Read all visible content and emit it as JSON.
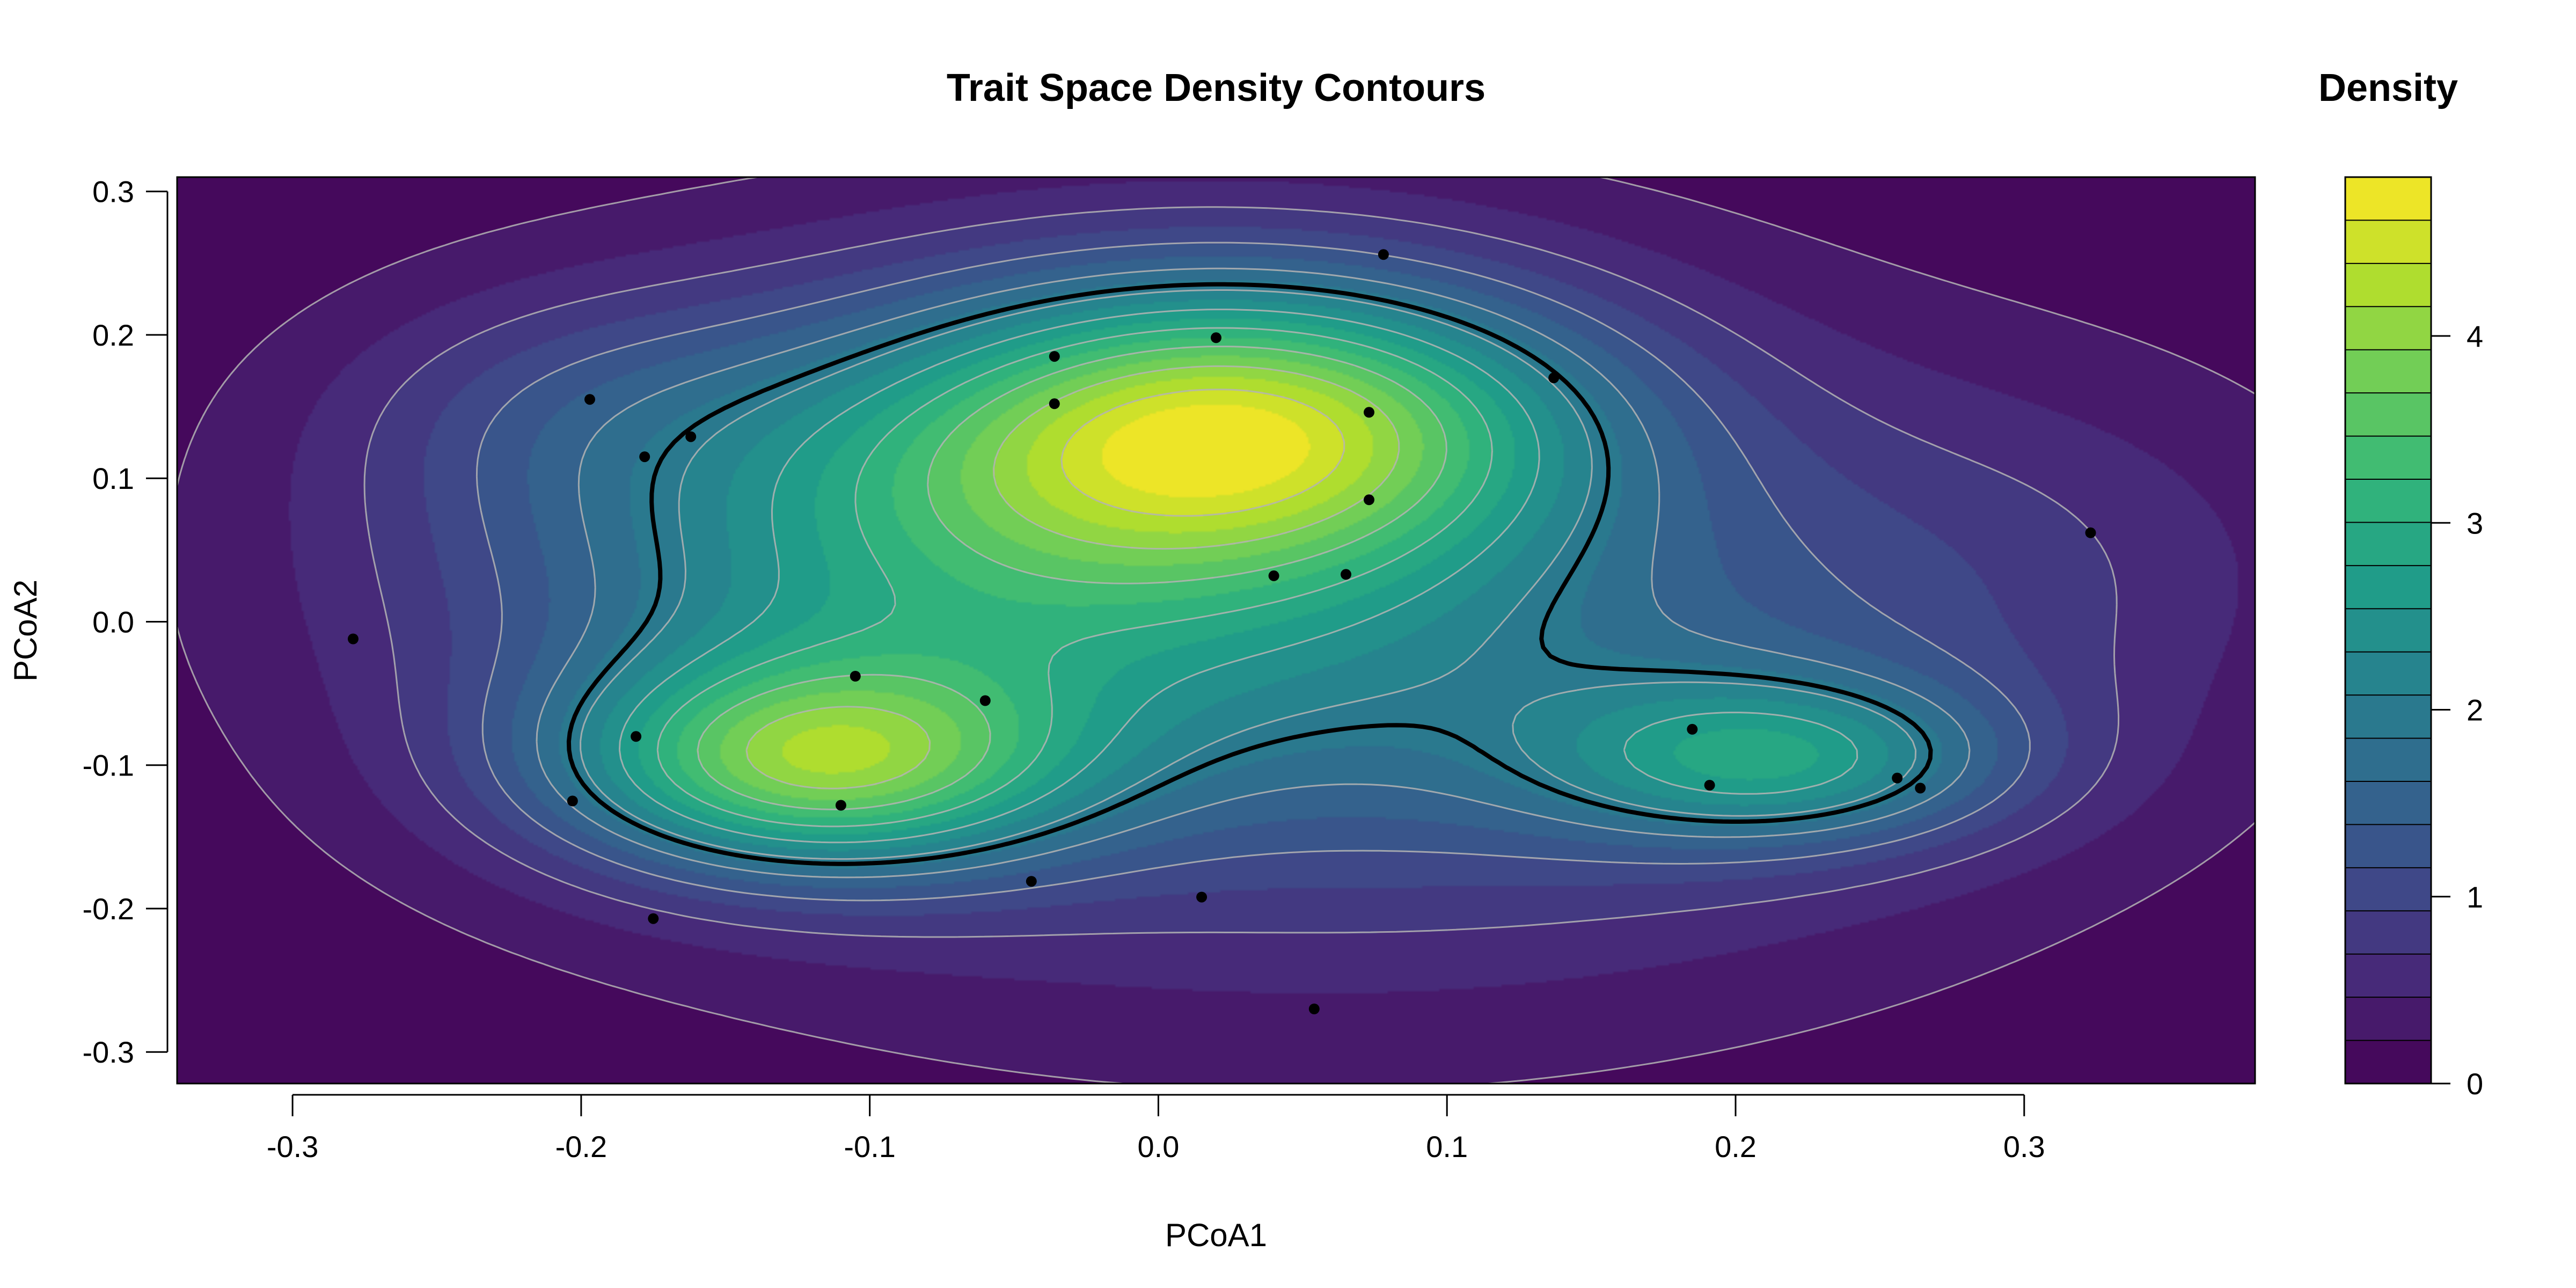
{
  "chart_data": {
    "type": "heatmap",
    "subtype": "filled-density-contour-with-scatter",
    "title": "Trait Space Density Contours",
    "xlabel": "PCoA1",
    "ylabel": "PCoA2",
    "xlim": [
      -0.34,
      0.38
    ],
    "ylim": [
      -0.322,
      0.31
    ],
    "x_ticks": [
      -0.3,
      -0.2,
      -0.1,
      0.0,
      0.1,
      0.2,
      0.3
    ],
    "x_tick_labels": [
      "-0.3",
      "-0.2",
      "-0.1",
      "0.0",
      "0.1",
      "0.2",
      "0.3"
    ],
    "y_ticks": [
      -0.3,
      -0.2,
      -0.1,
      0.0,
      0.1,
      0.2,
      0.3
    ],
    "y_tick_labels": [
      "-0.3",
      "-0.2",
      "-0.1",
      "0.0",
      "0.1",
      "0.2",
      "0.3"
    ],
    "grid": false,
    "colorscale": "viridis",
    "colorscale_stops": [
      "#440154",
      "#482878",
      "#3E4A89",
      "#31688E",
      "#26828E",
      "#1F9E89",
      "#35B779",
      "#6DCD59",
      "#B4DE2C",
      "#FDE725"
    ],
    "legend": {
      "title": "Density",
      "placement": "right",
      "range": [
        0,
        4.85
      ],
      "ticks": [
        0,
        1,
        2,
        3,
        4
      ],
      "tick_labels": [
        "0",
        "1",
        "2",
        "3",
        "4"
      ],
      "levels": 21
    },
    "density_peaks": [
      {
        "x": 0.032,
        "y": 0.138,
        "peak_density": 4.75
      },
      {
        "x": -0.12,
        "y": -0.1,
        "peak_density": 4.3
      },
      {
        "x": 0.215,
        "y": -0.097,
        "peak_density": 3.3
      }
    ],
    "highlight_contour": {
      "color": "#000000",
      "description_level": "outer hull"
    },
    "points": [
      {
        "x": 0.078,
        "y": 0.256
      },
      {
        "x": 0.02,
        "y": 0.198
      },
      {
        "x": -0.036,
        "y": 0.185
      },
      {
        "x": -0.036,
        "y": 0.152
      },
      {
        "x": 0.137,
        "y": 0.17
      },
      {
        "x": 0.073,
        "y": 0.146
      },
      {
        "x": -0.197,
        "y": 0.155
      },
      {
        "x": -0.162,
        "y": 0.129
      },
      {
        "x": -0.178,
        "y": 0.115
      },
      {
        "x": 0.073,
        "y": 0.085
      },
      {
        "x": 0.04,
        "y": 0.032
      },
      {
        "x": 0.065,
        "y": 0.033
      },
      {
        "x": 0.323,
        "y": 0.062
      },
      {
        "x": -0.279,
        "y": -0.012
      },
      {
        "x": -0.105,
        "y": -0.038
      },
      {
        "x": -0.06,
        "y": -0.055
      },
      {
        "x": -0.181,
        "y": -0.08
      },
      {
        "x": 0.185,
        "y": -0.075
      },
      {
        "x": 0.191,
        "y": -0.114
      },
      {
        "x": 0.256,
        "y": -0.109
      },
      {
        "x": 0.264,
        "y": -0.116
      },
      {
        "x": -0.203,
        "y": -0.125
      },
      {
        "x": -0.11,
        "y": -0.128
      },
      {
        "x": -0.044,
        "y": -0.181
      },
      {
        "x": 0.015,
        "y": -0.192
      },
      {
        "x": -0.175,
        "y": -0.207
      },
      {
        "x": 0.054,
        "y": -0.27
      }
    ]
  }
}
